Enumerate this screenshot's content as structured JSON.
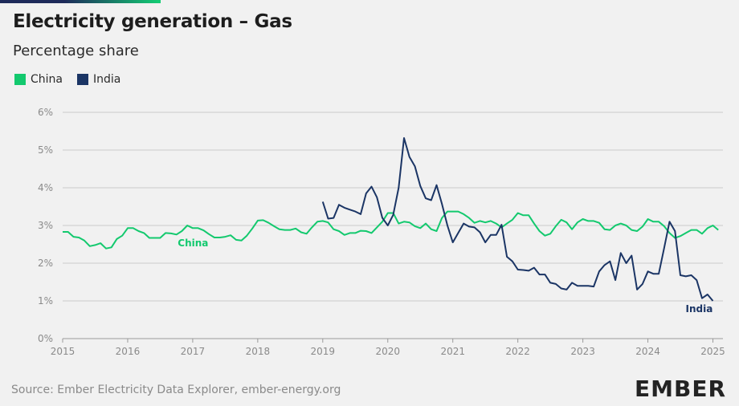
{
  "header": {
    "title": "Electricity generation – Gas",
    "subtitle": "Percentage share"
  },
  "footer": {
    "source": "Source: Ember Electricity Data Explorer, ember-energy.org",
    "logo": "EMBER"
  },
  "colors": {
    "china": "#13c96e",
    "india": "#1b3565",
    "grid": "#cccccc",
    "axis_text": "#8a8a8a"
  },
  "chart_data": {
    "type": "line",
    "title": "Electricity generation – Gas",
    "subtitle": "Percentage share",
    "xlim": [
      2015.0,
      2025.08
    ],
    "ylim": [
      0,
      6
    ],
    "x_ticks": [
      "2015",
      "2016",
      "2017",
      "2018",
      "2019",
      "2020",
      "2021",
      "2022",
      "2023",
      "2024",
      "2025"
    ],
    "y_ticks": [
      "0%",
      "1%",
      "2%",
      "3%",
      "4%",
      "5%",
      "6%"
    ],
    "grid": true,
    "legend": "top-left",
    "series": [
      {
        "name": "China",
        "label": "China",
        "color": "#13c96e",
        "points": [
          [
            2015.0,
            2.83
          ],
          [
            2015.083,
            2.83
          ],
          [
            2015.167,
            2.7
          ],
          [
            2015.25,
            2.68
          ],
          [
            2015.333,
            2.6
          ],
          [
            2015.417,
            2.45
          ],
          [
            2015.5,
            2.48
          ],
          [
            2015.583,
            2.53
          ],
          [
            2015.667,
            2.39
          ],
          [
            2015.75,
            2.42
          ],
          [
            2015.833,
            2.64
          ],
          [
            2015.917,
            2.73
          ],
          [
            2016.0,
            2.93
          ],
          [
            2016.083,
            2.93
          ],
          [
            2016.167,
            2.85
          ],
          [
            2016.25,
            2.8
          ],
          [
            2016.333,
            2.67
          ],
          [
            2016.417,
            2.67
          ],
          [
            2016.5,
            2.67
          ],
          [
            2016.583,
            2.8
          ],
          [
            2016.667,
            2.79
          ],
          [
            2016.75,
            2.76
          ],
          [
            2016.833,
            2.85
          ],
          [
            2016.917,
            3.0
          ],
          [
            2017.0,
            2.93
          ],
          [
            2017.083,
            2.93
          ],
          [
            2017.167,
            2.87
          ],
          [
            2017.25,
            2.77
          ],
          [
            2017.333,
            2.68
          ],
          [
            2017.417,
            2.68
          ],
          [
            2017.5,
            2.7
          ],
          [
            2017.583,
            2.74
          ],
          [
            2017.667,
            2.62
          ],
          [
            2017.75,
            2.6
          ],
          [
            2017.833,
            2.73
          ],
          [
            2017.917,
            2.92
          ],
          [
            2018.0,
            3.13
          ],
          [
            2018.083,
            3.14
          ],
          [
            2018.167,
            3.07
          ],
          [
            2018.25,
            2.98
          ],
          [
            2018.333,
            2.9
          ],
          [
            2018.417,
            2.88
          ],
          [
            2018.5,
            2.88
          ],
          [
            2018.583,
            2.92
          ],
          [
            2018.667,
            2.82
          ],
          [
            2018.75,
            2.78
          ],
          [
            2018.833,
            2.95
          ],
          [
            2018.917,
            3.1
          ],
          [
            2019.0,
            3.12
          ],
          [
            2019.083,
            3.08
          ],
          [
            2019.167,
            2.9
          ],
          [
            2019.25,
            2.85
          ],
          [
            2019.333,
            2.75
          ],
          [
            2019.417,
            2.8
          ],
          [
            2019.5,
            2.8
          ],
          [
            2019.583,
            2.86
          ],
          [
            2019.667,
            2.85
          ],
          [
            2019.75,
            2.8
          ],
          [
            2019.833,
            2.95
          ],
          [
            2019.917,
            3.1
          ],
          [
            2020.0,
            3.33
          ],
          [
            2020.083,
            3.33
          ],
          [
            2020.167,
            3.05
          ],
          [
            2020.25,
            3.1
          ],
          [
            2020.333,
            3.08
          ],
          [
            2020.417,
            2.98
          ],
          [
            2020.5,
            2.93
          ],
          [
            2020.583,
            3.05
          ],
          [
            2020.667,
            2.9
          ],
          [
            2020.75,
            2.85
          ],
          [
            2020.833,
            3.2
          ],
          [
            2020.917,
            3.37
          ],
          [
            2021.0,
            3.37
          ],
          [
            2021.083,
            3.37
          ],
          [
            2021.167,
            3.3
          ],
          [
            2021.25,
            3.2
          ],
          [
            2021.333,
            3.07
          ],
          [
            2021.417,
            3.12
          ],
          [
            2021.5,
            3.08
          ],
          [
            2021.583,
            3.12
          ],
          [
            2021.667,
            3.05
          ],
          [
            2021.75,
            2.95
          ],
          [
            2021.833,
            3.05
          ],
          [
            2021.917,
            3.15
          ],
          [
            2022.0,
            3.33
          ],
          [
            2022.083,
            3.27
          ],
          [
            2022.167,
            3.27
          ],
          [
            2022.25,
            3.05
          ],
          [
            2022.333,
            2.85
          ],
          [
            2022.417,
            2.73
          ],
          [
            2022.5,
            2.78
          ],
          [
            2022.583,
            2.98
          ],
          [
            2022.667,
            3.15
          ],
          [
            2022.75,
            3.08
          ],
          [
            2022.833,
            2.9
          ],
          [
            2022.917,
            3.08
          ],
          [
            2023.0,
            3.17
          ],
          [
            2023.083,
            3.12
          ],
          [
            2023.167,
            3.12
          ],
          [
            2023.25,
            3.07
          ],
          [
            2023.333,
            2.9
          ],
          [
            2023.417,
            2.88
          ],
          [
            2023.5,
            3.0
          ],
          [
            2023.583,
            3.05
          ],
          [
            2023.667,
            3.0
          ],
          [
            2023.75,
            2.88
          ],
          [
            2023.833,
            2.85
          ],
          [
            2023.917,
            2.97
          ],
          [
            2024.0,
            3.17
          ],
          [
            2024.083,
            3.1
          ],
          [
            2024.167,
            3.1
          ],
          [
            2024.25,
            2.98
          ],
          [
            2024.333,
            2.8
          ],
          [
            2024.417,
            2.67
          ],
          [
            2024.5,
            2.72
          ],
          [
            2024.583,
            2.8
          ],
          [
            2024.667,
            2.88
          ],
          [
            2024.75,
            2.88
          ],
          [
            2024.833,
            2.78
          ],
          [
            2024.917,
            2.93
          ],
          [
            2025.0,
            3.0
          ],
          [
            2025.083,
            2.88
          ]
        ]
      },
      {
        "name": "India",
        "label": "India",
        "color": "#1b3565",
        "points": [
          [
            2019.0,
            3.63
          ],
          [
            2019.083,
            3.18
          ],
          [
            2019.167,
            3.2
          ],
          [
            2019.25,
            3.55
          ],
          [
            2019.333,
            3.47
          ],
          [
            2019.417,
            3.42
          ],
          [
            2019.5,
            3.37
          ],
          [
            2019.583,
            3.3
          ],
          [
            2019.667,
            3.85
          ],
          [
            2019.75,
            4.03
          ],
          [
            2019.833,
            3.75
          ],
          [
            2019.917,
            3.2
          ],
          [
            2020.0,
            3.0
          ],
          [
            2020.083,
            3.28
          ],
          [
            2020.167,
            4.0
          ],
          [
            2020.25,
            5.32
          ],
          [
            2020.333,
            4.82
          ],
          [
            2020.417,
            4.57
          ],
          [
            2020.5,
            4.05
          ],
          [
            2020.583,
            3.72
          ],
          [
            2020.667,
            3.67
          ],
          [
            2020.75,
            4.07
          ],
          [
            2020.833,
            3.57
          ],
          [
            2020.917,
            3.0
          ],
          [
            2021.0,
            2.55
          ],
          [
            2021.083,
            2.8
          ],
          [
            2021.167,
            3.05
          ],
          [
            2021.25,
            2.97
          ],
          [
            2021.333,
            2.95
          ],
          [
            2021.417,
            2.82
          ],
          [
            2021.5,
            2.55
          ],
          [
            2021.583,
            2.75
          ],
          [
            2021.667,
            2.75
          ],
          [
            2021.75,
            3.02
          ],
          [
            2021.833,
            2.17
          ],
          [
            2021.917,
            2.05
          ],
          [
            2022.0,
            1.83
          ],
          [
            2022.083,
            1.82
          ],
          [
            2022.167,
            1.8
          ],
          [
            2022.25,
            1.88
          ],
          [
            2022.333,
            1.7
          ],
          [
            2022.417,
            1.7
          ],
          [
            2022.5,
            1.48
          ],
          [
            2022.583,
            1.45
          ],
          [
            2022.667,
            1.33
          ],
          [
            2022.75,
            1.3
          ],
          [
            2022.833,
            1.48
          ],
          [
            2022.917,
            1.4
          ],
          [
            2023.0,
            1.4
          ],
          [
            2023.083,
            1.4
          ],
          [
            2023.167,
            1.38
          ],
          [
            2023.25,
            1.78
          ],
          [
            2023.333,
            1.95
          ],
          [
            2023.417,
            2.05
          ],
          [
            2023.5,
            1.55
          ],
          [
            2023.583,
            2.27
          ],
          [
            2023.667,
            2.0
          ],
          [
            2023.75,
            2.2
          ],
          [
            2023.833,
            1.3
          ],
          [
            2023.917,
            1.45
          ],
          [
            2024.0,
            1.78
          ],
          [
            2024.083,
            1.72
          ],
          [
            2024.167,
            1.72
          ],
          [
            2024.25,
            2.4
          ],
          [
            2024.333,
            3.1
          ],
          [
            2024.417,
            2.85
          ],
          [
            2024.5,
            1.68
          ],
          [
            2024.583,
            1.65
          ],
          [
            2024.667,
            1.68
          ],
          [
            2024.75,
            1.55
          ],
          [
            2024.833,
            1.07
          ],
          [
            2024.917,
            1.17
          ],
          [
            2025.0,
            1.0
          ]
        ]
      }
    ]
  }
}
